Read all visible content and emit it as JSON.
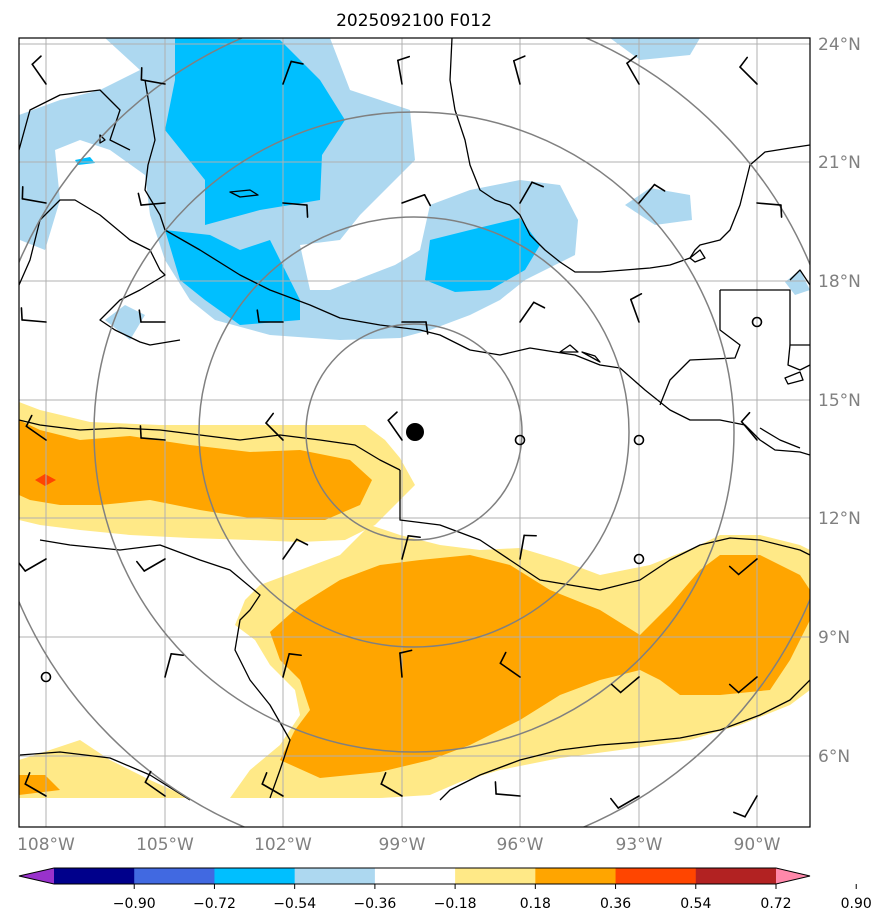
{
  "title": "2025092100 F012",
  "lat_labels": [
    "24°N",
    "21°N",
    "18°N",
    "15°N",
    "12°N",
    "9°N",
    "6°N"
  ],
  "lon_labels": [
    "108°W",
    "105°W",
    "102°W",
    "99°W",
    "96°W",
    "93°W",
    "90°W"
  ],
  "colorbar": {
    "ticks": [
      "−0.90",
      "−0.72",
      "−0.54",
      "−0.36",
      "−0.18",
      "0.18",
      "0.36",
      "0.54",
      "0.72",
      "0.90"
    ],
    "colors": [
      "#9932cc",
      "#00008b",
      "#4169e1",
      "#00bfff",
      "#add8f0",
      "#ffffff",
      "#ffe987",
      "#ffa500",
      "#ff4500",
      "#b22222",
      "#ff88aa"
    ]
  },
  "storm_center": {
    "lon": -98.7,
    "lat": 14.2
  },
  "colors": {
    "blue_light": "#add8f0",
    "blue_mid": "#00bfff",
    "yellow": "#ffe987",
    "orange": "#ffa500",
    "red": "#ff4500",
    "grid": "#b0b0b0",
    "rings": "#808080",
    "coast": "#000000",
    "labels": "#808080"
  }
}
